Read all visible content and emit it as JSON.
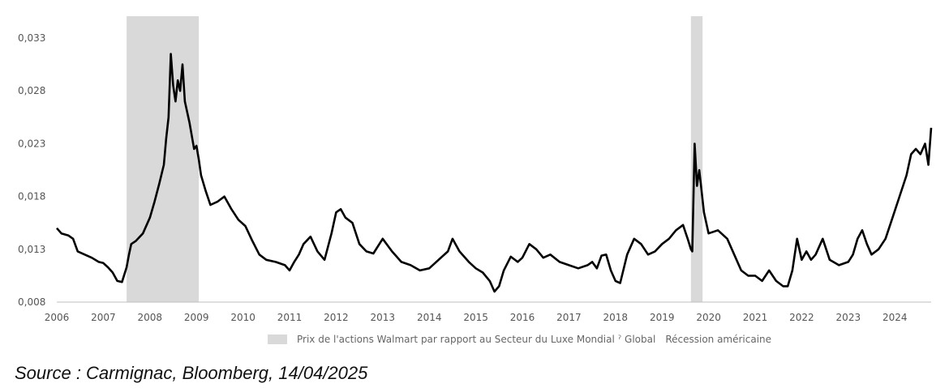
{
  "chart_data": {
    "type": "line",
    "y_ticks": [
      "0,008",
      "0,013",
      "0,018",
      "0,023",
      "0,028",
      "0,033"
    ],
    "y_values": [
      0.008,
      0.013,
      0.018,
      0.023,
      0.028,
      0.033
    ],
    "ylim": [
      0.008,
      0.035
    ],
    "x_ticks": [
      "2006",
      "2007",
      "2008",
      "2009",
      "2010",
      "2011",
      "2012",
      "2013",
      "2014",
      "2015",
      "2016",
      "2017",
      "2018",
      "2019",
      "2020",
      "2021",
      "2022",
      "2023",
      "2024"
    ],
    "xlim": [
      2006.0,
      2024.78
    ],
    "grid": false,
    "recessions": [
      {
        "start": 2007.5,
        "end": 2009.05
      },
      {
        "start": 2019.62,
        "end": 2019.87
      }
    ],
    "series": [
      {
        "name": "Prix de l'actions Walmart par rapport au Secteur du Luxe Mondial",
        "color": "#000000",
        "x": [
          2006.0,
          2006.1,
          2006.25,
          2006.35,
          2006.45,
          2006.6,
          2006.75,
          2006.9,
          2007.0,
          2007.1,
          2007.2,
          2007.3,
          2007.4,
          2007.5,
          2007.55,
          2007.6,
          2007.7,
          2007.85,
          2008.0,
          2008.1,
          2008.2,
          2008.3,
          2008.35,
          2008.4,
          2008.45,
          2008.5,
          2008.55,
          2008.6,
          2008.65,
          2008.7,
          2008.75,
          2008.85,
          2008.95,
          2009.0,
          2009.05,
          2009.1,
          2009.2,
          2009.3,
          2009.45,
          2009.6,
          2009.75,
          2009.9,
          2010.05,
          2010.2,
          2010.35,
          2010.5,
          2010.7,
          2010.9,
          2011.0,
          2011.1,
          2011.2,
          2011.3,
          2011.45,
          2011.6,
          2011.75,
          2011.9,
          2012.0,
          2012.1,
          2012.2,
          2012.35,
          2012.5,
          2012.65,
          2012.8,
          2013.0,
          2013.2,
          2013.4,
          2013.6,
          2013.8,
          2014.0,
          2014.2,
          2014.4,
          2014.5,
          2014.65,
          2014.85,
          2015.0,
          2015.15,
          2015.3,
          2015.4,
          2015.5,
          2015.6,
          2015.75,
          2015.9,
          2016.0,
          2016.15,
          2016.3,
          2016.45,
          2016.6,
          2016.8,
          2017.0,
          2017.2,
          2017.4,
          2017.5,
          2017.6,
          2017.7,
          2017.8,
          2017.9,
          2018.0,
          2018.1,
          2018.25,
          2018.4,
          2018.55,
          2018.7,
          2018.85,
          2019.0,
          2019.15,
          2019.3,
          2019.45,
          2019.55,
          2019.62,
          2019.65,
          2019.7,
          2019.75,
          2019.8,
          2019.9,
          2020.0,
          2020.2,
          2020.4,
          2020.55,
          2020.7,
          2020.85,
          2021.0,
          2021.15,
          2021.3,
          2021.45,
          2021.6,
          2021.7,
          2021.8,
          2021.9,
          2022.0,
          2022.1,
          2022.2,
          2022.3,
          2022.45,
          2022.6,
          2022.8,
          2023.0,
          2023.1,
          2023.2,
          2023.3,
          2023.4,
          2023.5,
          2023.65,
          2023.8,
          2023.95,
          2024.1,
          2024.25,
          2024.35,
          2024.45,
          2024.55,
          2024.65,
          2024.72,
          2024.78
        ],
        "values": [
          0.015,
          0.0145,
          0.0143,
          0.014,
          0.0128,
          0.0125,
          0.0122,
          0.0118,
          0.0117,
          0.0113,
          0.0108,
          0.01,
          0.0099,
          0.0113,
          0.0125,
          0.0135,
          0.0138,
          0.0145,
          0.016,
          0.0175,
          0.0192,
          0.021,
          0.0235,
          0.0255,
          0.0315,
          0.0285,
          0.027,
          0.029,
          0.028,
          0.0305,
          0.027,
          0.025,
          0.0225,
          0.0228,
          0.0215,
          0.02,
          0.0185,
          0.0172,
          0.0175,
          0.018,
          0.0168,
          0.0158,
          0.0152,
          0.0138,
          0.0125,
          0.012,
          0.0118,
          0.0115,
          0.011,
          0.0118,
          0.0125,
          0.0135,
          0.0142,
          0.0128,
          0.012,
          0.0145,
          0.0165,
          0.0168,
          0.016,
          0.0155,
          0.0135,
          0.0128,
          0.0126,
          0.014,
          0.0128,
          0.0118,
          0.0115,
          0.011,
          0.0112,
          0.012,
          0.0128,
          0.014,
          0.0128,
          0.0118,
          0.0112,
          0.0108,
          0.01,
          0.009,
          0.0095,
          0.011,
          0.0123,
          0.0118,
          0.0122,
          0.0135,
          0.013,
          0.0122,
          0.0125,
          0.0118,
          0.0115,
          0.0112,
          0.0115,
          0.0118,
          0.0112,
          0.0124,
          0.0125,
          0.011,
          0.01,
          0.0098,
          0.0125,
          0.014,
          0.0135,
          0.0125,
          0.0128,
          0.0135,
          0.014,
          0.0148,
          0.0153,
          0.014,
          0.013,
          0.0128,
          0.023,
          0.019,
          0.0205,
          0.0165,
          0.0145,
          0.0148,
          0.014,
          0.0125,
          0.011,
          0.0105,
          0.0105,
          0.01,
          0.011,
          0.01,
          0.0095,
          0.0095,
          0.011,
          0.014,
          0.012,
          0.0128,
          0.012,
          0.0125,
          0.014,
          0.012,
          0.0115,
          0.0118,
          0.0125,
          0.014,
          0.0148,
          0.0135,
          0.0125,
          0.013,
          0.014,
          0.016,
          0.018,
          0.02,
          0.022,
          0.0225,
          0.022,
          0.023,
          0.021,
          0.0245
        ]
      }
    ]
  },
  "legend": {
    "series_label": "Prix de l'actions Walmart par rapport au Secteur du Luxe Mondial",
    "series_suffix": "ˀ Global",
    "recession_label": "Récession américaine",
    "recession_color": "#d9d9d9"
  },
  "source": "Source : Carmignac, Bloomberg, 14/04/2025"
}
